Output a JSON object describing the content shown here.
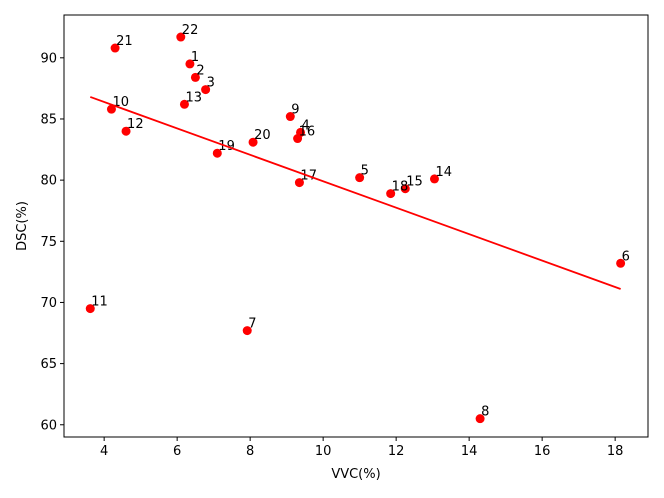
{
  "chart_data": {
    "type": "scatter",
    "title": "",
    "xlabel": "VVC(%)",
    "ylabel": "DSC(%)",
    "xlim": [
      2.9,
      18.9
    ],
    "ylim": [
      59.0,
      93.5
    ],
    "xticks": [
      4,
      6,
      8,
      10,
      12,
      14,
      16,
      18
    ],
    "yticks": [
      60,
      65,
      70,
      75,
      80,
      85,
      90
    ],
    "grid": false,
    "point_color": "#ff0000",
    "line_color": "#ff0000",
    "points": [
      {
        "label": "1",
        "x": 6.35,
        "y": 89.5
      },
      {
        "label": "2",
        "x": 6.5,
        "y": 88.4
      },
      {
        "label": "3",
        "x": 6.78,
        "y": 87.4
      },
      {
        "label": "4",
        "x": 9.38,
        "y": 83.9
      },
      {
        "label": "5",
        "x": 11.0,
        "y": 80.2
      },
      {
        "label": "6",
        "x": 18.15,
        "y": 73.2
      },
      {
        "label": "7",
        "x": 7.92,
        "y": 67.7
      },
      {
        "label": "8",
        "x": 14.3,
        "y": 60.5
      },
      {
        "label": "9",
        "x": 9.1,
        "y": 85.2
      },
      {
        "label": "10",
        "x": 4.2,
        "y": 85.8
      },
      {
        "label": "11",
        "x": 3.62,
        "y": 69.5
      },
      {
        "label": "12",
        "x": 4.6,
        "y": 84.0
      },
      {
        "label": "13",
        "x": 6.2,
        "y": 86.2
      },
      {
        "label": "14",
        "x": 13.05,
        "y": 80.1
      },
      {
        "label": "15",
        "x": 12.25,
        "y": 79.3
      },
      {
        "label": "16",
        "x": 9.3,
        "y": 83.4
      },
      {
        "label": "17",
        "x": 9.35,
        "y": 79.8
      },
      {
        "label": "18",
        "x": 11.85,
        "y": 78.9
      },
      {
        "label": "19",
        "x": 7.1,
        "y": 82.2
      },
      {
        "label": "20",
        "x": 8.08,
        "y": 83.1
      },
      {
        "label": "21",
        "x": 4.3,
        "y": 90.8
      },
      {
        "label": "22",
        "x": 6.1,
        "y": 91.7
      }
    ],
    "trend_line": {
      "x": [
        3.62,
        18.15
      ],
      "y": [
        86.8,
        71.1
      ]
    }
  }
}
